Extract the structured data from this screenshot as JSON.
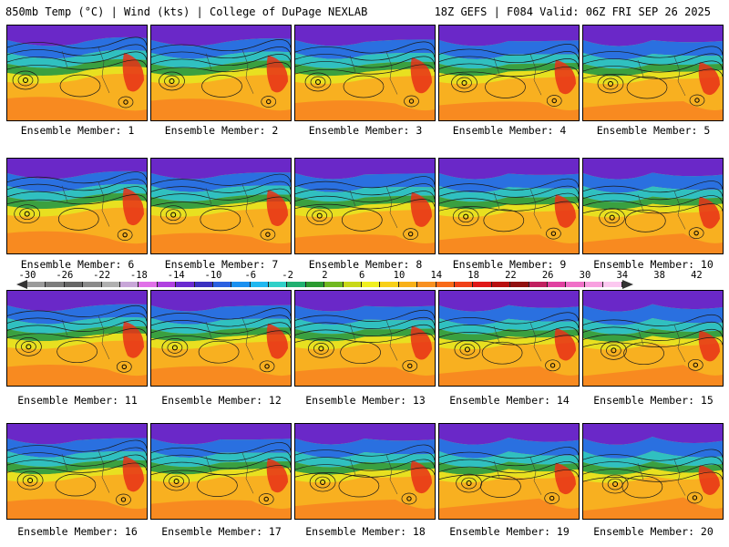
{
  "header": {
    "left_title": "850mb Temp (°C) | Wind (kts) | College of DuPage NEXLAB",
    "right_title": "18Z GEFS | F084 Valid: 06Z FRI SEP 26 2025"
  },
  "members": [
    {
      "label": "Ensemble Member: 1"
    },
    {
      "label": "Ensemble Member: 2"
    },
    {
      "label": "Ensemble Member: 3"
    },
    {
      "label": "Ensemble Member: 4"
    },
    {
      "label": "Ensemble Member: 5"
    },
    {
      "label": "Ensemble Member: 6"
    },
    {
      "label": "Ensemble Member: 7"
    },
    {
      "label": "Ensemble Member: 8"
    },
    {
      "label": "Ensemble Member: 9"
    },
    {
      "label": "Ensemble Member: 10"
    },
    {
      "label": "Ensemble Member: 11"
    },
    {
      "label": "Ensemble Member: 12"
    },
    {
      "label": "Ensemble Member: 13"
    },
    {
      "label": "Ensemble Member: 14"
    },
    {
      "label": "Ensemble Member: 15"
    },
    {
      "label": "Ensemble Member: 16"
    },
    {
      "label": "Ensemble Member: 17"
    },
    {
      "label": "Ensemble Member: 18"
    },
    {
      "label": "Ensemble Member: 19"
    },
    {
      "label": "Ensemble Member: 20"
    }
  ],
  "colorbar": {
    "ticks": [
      "-30",
      "-26",
      "-22",
      "-18",
      "-14",
      "-10",
      "-6",
      "-2",
      "2",
      "6",
      "10",
      "14",
      "18",
      "22",
      "26",
      "30",
      "34",
      "38",
      "42"
    ],
    "colors": [
      "#9a9a9a",
      "#7c7c7c",
      "#666666",
      "#8a8a8a",
      "#b0b0b0",
      "#c8a6d8",
      "#e070e8",
      "#b040e0",
      "#6a2ad0",
      "#3a30c0",
      "#2a60e0",
      "#1a90f0",
      "#20b8f0",
      "#30d0c8",
      "#20b070",
      "#2a9a30",
      "#70b820",
      "#c8d818",
      "#f0f020",
      "#f8d018",
      "#f8b018",
      "#f89020",
      "#f86a18",
      "#f04018",
      "#e01818",
      "#b81010",
      "#901010",
      "#c02060",
      "#e040a0",
      "#f070c8",
      "#f8a0e0",
      "#fcc8f0"
    ]
  },
  "map_colors": {
    "cold_top": "#6a28c8",
    "cool": "#2a70e0",
    "mild": "#30c0c0",
    "green": "#3aa040",
    "warm_yellow": "#e8e020",
    "warm": "#f8b020",
    "hot": "#f88a20",
    "hottest": "#e83018"
  }
}
